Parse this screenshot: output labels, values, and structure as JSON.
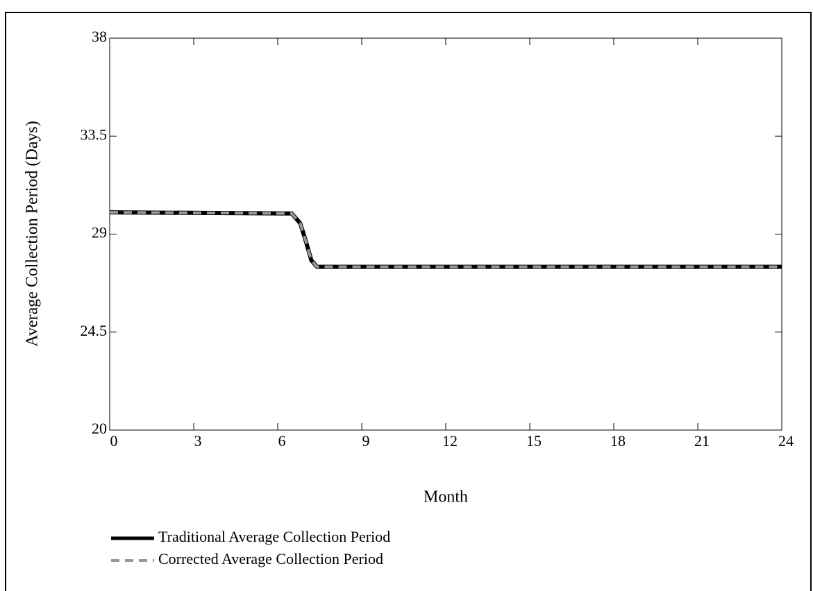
{
  "chart_data": {
    "type": "line",
    "x_label": "Month",
    "y_label": "Average Collection Period (Days)",
    "x": [
      0,
      6.5,
      6.8,
      7.0,
      7.2,
      7.4,
      24
    ],
    "series": [
      {
        "name": "Traditional Average Collection Period",
        "color": "#000000",
        "dashed": false,
        "values": [
          30,
          29.95,
          29.5,
          28.7,
          27.8,
          27.5,
          27.5
        ]
      },
      {
        "name": "Corrected Average Collection Period",
        "color": "#999999",
        "dashed": true,
        "values": [
          30,
          29.95,
          29.5,
          28.7,
          27.8,
          27.5,
          27.5
        ]
      }
    ],
    "xlim": [
      0,
      24
    ],
    "xticks": [
      0,
      3,
      6,
      9,
      12,
      15,
      18,
      21,
      24
    ],
    "ylim": [
      20,
      38
    ],
    "yticks": [
      20,
      24.5,
      29,
      33.5,
      38
    ],
    "grid": false
  }
}
